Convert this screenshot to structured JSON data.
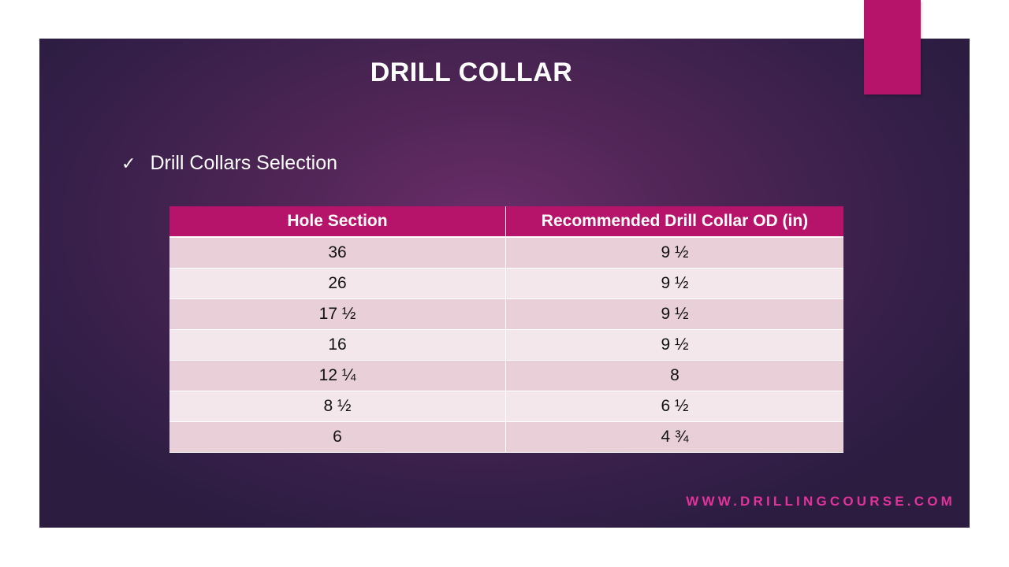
{
  "slide": {
    "title": "DRILL COLLAR",
    "bullet_text": "Drill Collars Selection",
    "footer": "WWW.DRILLINGCOURSE.COM"
  },
  "table": {
    "headers": [
      "Hole Section",
      "Recommended Drill Collar OD (in)"
    ],
    "rows": [
      [
        "36",
        "9 ½"
      ],
      [
        "26",
        "9 ½"
      ],
      [
        "17 ½",
        "9 ½"
      ],
      [
        "16",
        "9 ½"
      ],
      [
        "12 ¼",
        "8"
      ],
      [
        "8 ½",
        "6 ½"
      ],
      [
        "6",
        "4 ¾"
      ]
    ]
  },
  "colors": {
    "accent": "#b5146a",
    "background": "#4e2554",
    "footer": "#e0349a"
  }
}
